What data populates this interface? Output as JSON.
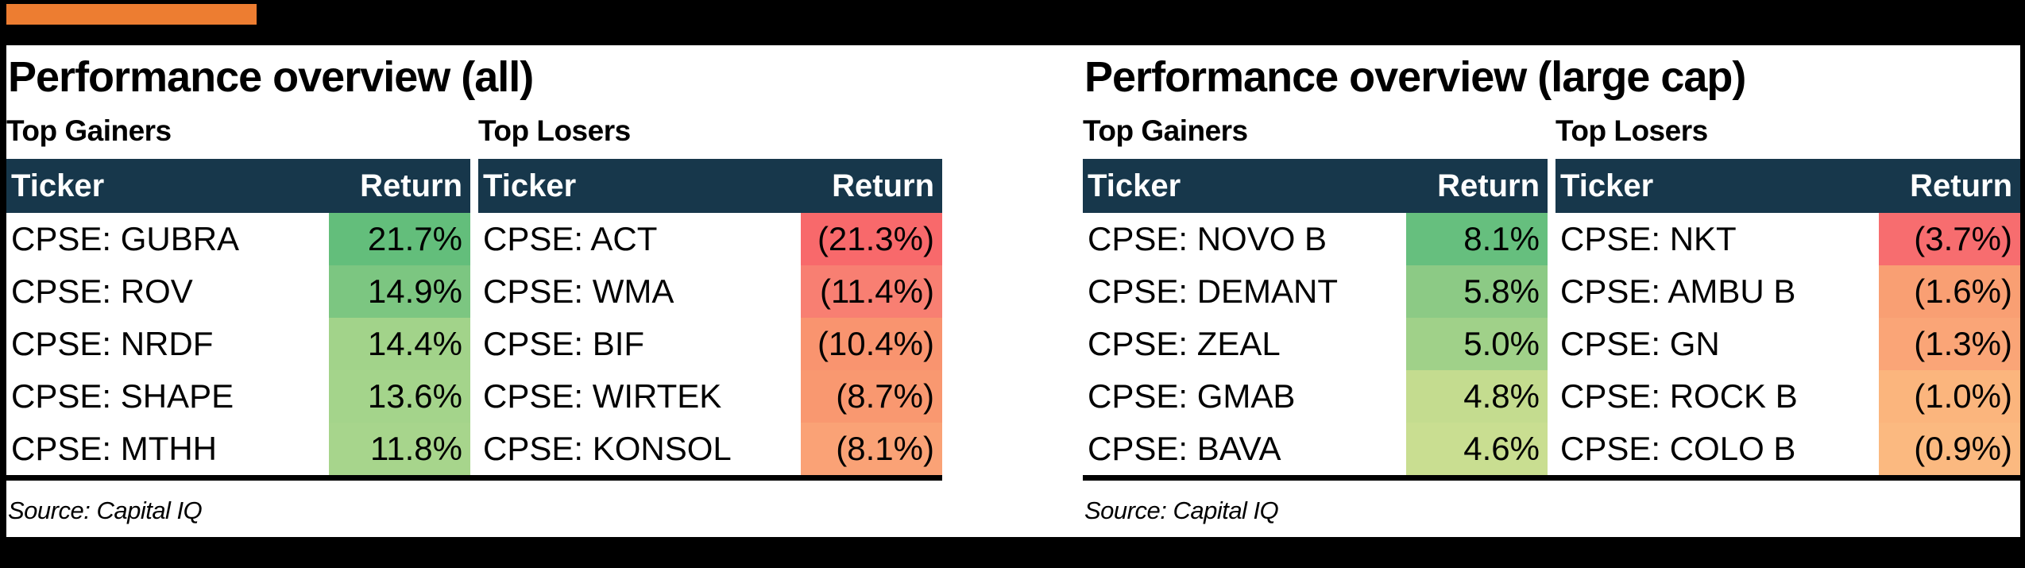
{
  "accent": {
    "bar_color": "#ED7D31",
    "header_bg": "#17374B",
    "frame_color": "#000000"
  },
  "panels": [
    {
      "title": "Performance overview (all)",
      "source": "Source: Capital IQ",
      "gainers": {
        "heading": "Top Gainers",
        "columns": {
          "ticker": "Ticker",
          "return": "Return"
        },
        "rows": [
          {
            "ticker": "CPSE: GUBRA",
            "return": "21.7%",
            "bg": "#63BE7B"
          },
          {
            "ticker": "CPSE: ROV",
            "return": "14.9%",
            "bg": "#7CC681"
          },
          {
            "ticker": "CPSE: NRDF",
            "return": "14.4%",
            "bg": "#A2D38A"
          },
          {
            "ticker": "CPSE: SHAPE",
            "return": "13.6%",
            "bg": "#A4D48B"
          },
          {
            "ticker": "CPSE: MTHH",
            "return": "11.8%",
            "bg": "#A7D58C"
          }
        ]
      },
      "losers": {
        "heading": "Top Losers",
        "columns": {
          "ticker": "Ticker",
          "return": "Return"
        },
        "rows": [
          {
            "ticker": "CPSE: ACT",
            "return": "(21.3%)",
            "bg": "#F8696B"
          },
          {
            "ticker": "CPSE: WMA",
            "return": "(11.4%)",
            "bg": "#F87F72"
          },
          {
            "ticker": "CPSE: BIF",
            "return": "(10.4%)",
            "bg": "#F9946F"
          },
          {
            "ticker": "CPSE: WIRTEK",
            "return": "(8.7%)",
            "bg": "#F99870"
          },
          {
            "ticker": "CPSE: KONSOL",
            "return": "(8.1%)",
            "bg": "#FAA276"
          }
        ]
      }
    },
    {
      "title": "Performance overview (large cap)",
      "source": "Source: Capital IQ",
      "gainers": {
        "heading": "Top Gainers",
        "columns": {
          "ticker": "Ticker",
          "return": "Return"
        },
        "rows": [
          {
            "ticker": "CPSE: NOVO B",
            "return": "8.1%",
            "bg": "#66BF7E"
          },
          {
            "ticker": "CPSE: DEMANT",
            "return": "5.8%",
            "bg": "#8CCA85"
          },
          {
            "ticker": "CPSE: ZEAL",
            "return": "5.0%",
            "bg": "#A0D189"
          },
          {
            "ticker": "CPSE: GMAB",
            "return": "4.8%",
            "bg": "#C4DC8F"
          },
          {
            "ticker": "CPSE: BAVA",
            "return": "4.6%",
            "bg": "#C9DE91"
          }
        ]
      },
      "losers": {
        "heading": "Top Losers",
        "columns": {
          "ticker": "Ticker",
          "return": "Return"
        },
        "rows": [
          {
            "ticker": "CPSE: NKT",
            "return": "(3.7%)",
            "bg": "#F76D6F"
          },
          {
            "ticker": "CPSE: AMBU B",
            "return": "(1.6%)",
            "bg": "#F99F73"
          },
          {
            "ticker": "CPSE: GN",
            "return": "(1.3%)",
            "bg": "#FAA577"
          },
          {
            "ticker": "CPSE: ROCK B",
            "return": "(1.0%)",
            "bg": "#FBB57D"
          },
          {
            "ticker": "CPSE: COLO B",
            "return": "(0.9%)",
            "bg": "#FBB980"
          }
        ]
      }
    }
  ]
}
